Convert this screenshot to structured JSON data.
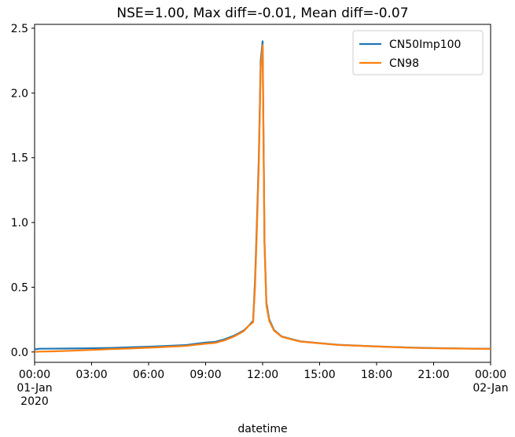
{
  "chart_data": {
    "type": "line",
    "title": "NSE=1.00, Max diff=-0.01, Mean diff=-0.07",
    "xlabel": "datetime",
    "ylabel": "",
    "xlim": [
      0,
      24
    ],
    "ylim": [
      -0.08,
      2.53
    ],
    "grid": false,
    "legend_position": "top-right",
    "x_ticks": [
      {
        "value": 0,
        "lines": [
          "00:00",
          "01-Jan",
          "2020"
        ]
      },
      {
        "value": 3,
        "lines": [
          "03:00"
        ]
      },
      {
        "value": 6,
        "lines": [
          "06:00"
        ]
      },
      {
        "value": 9,
        "lines": [
          "09:00"
        ]
      },
      {
        "value": 12,
        "lines": [
          "12:00"
        ]
      },
      {
        "value": 15,
        "lines": [
          "15:00"
        ]
      },
      {
        "value": 18,
        "lines": [
          "18:00"
        ]
      },
      {
        "value": 21,
        "lines": [
          "21:00"
        ]
      },
      {
        "value": 24,
        "lines": [
          "00:00",
          "02-Jan"
        ]
      }
    ],
    "y_ticks": [
      "0.0",
      "0.5",
      "1.0",
      "1.5",
      "2.0",
      "2.5"
    ],
    "series": [
      {
        "name": "CN50Imp100",
        "color": "#1f77b4",
        "x": [
          0,
          0.25,
          1,
          2,
          3,
          4,
          5,
          6,
          7,
          8,
          8.5,
          9,
          9.5,
          10,
          10.5,
          11,
          11.25,
          11.5,
          11.6,
          11.7,
          11.8,
          11.9,
          12.0,
          12.1,
          12.2,
          12.35,
          12.6,
          13,
          13.5,
          14,
          15,
          16,
          17,
          18,
          19,
          20,
          21,
          22,
          23,
          24
        ],
        "y": [
          0.02,
          0.025,
          0.026,
          0.027,
          0.029,
          0.031,
          0.036,
          0.041,
          0.047,
          0.054,
          0.064,
          0.073,
          0.078,
          0.098,
          0.126,
          0.165,
          0.2,
          0.24,
          0.55,
          1.0,
          1.5,
          2.25,
          2.4,
          0.85,
          0.38,
          0.25,
          0.17,
          0.12,
          0.1,
          0.082,
          0.068,
          0.055,
          0.049,
          0.043,
          0.038,
          0.033,
          0.03,
          0.028,
          0.026,
          0.025
        ]
      },
      {
        "name": "CN98",
        "color": "#ff7f0e",
        "x": [
          0,
          0.25,
          1,
          2,
          3,
          4,
          5,
          6,
          7,
          8,
          8.5,
          9,
          9.5,
          10,
          10.5,
          11,
          11.25,
          11.5,
          11.6,
          11.7,
          11.8,
          11.9,
          12.0,
          12.1,
          12.2,
          12.35,
          12.6,
          13,
          13.5,
          14,
          15,
          16,
          17,
          18,
          19,
          20,
          21,
          22,
          23,
          24
        ],
        "y": [
          0.0,
          0.003,
          0.005,
          0.01,
          0.016,
          0.022,
          0.027,
          0.033,
          0.04,
          0.047,
          0.056,
          0.064,
          0.07,
          0.09,
          0.12,
          0.16,
          0.2,
          0.23,
          0.5,
          0.95,
          1.45,
          2.2,
          2.37,
          0.82,
          0.36,
          0.24,
          0.165,
          0.118,
          0.098,
          0.08,
          0.067,
          0.054,
          0.048,
          0.042,
          0.037,
          0.032,
          0.029,
          0.027,
          0.025,
          0.024
        ]
      }
    ]
  }
}
